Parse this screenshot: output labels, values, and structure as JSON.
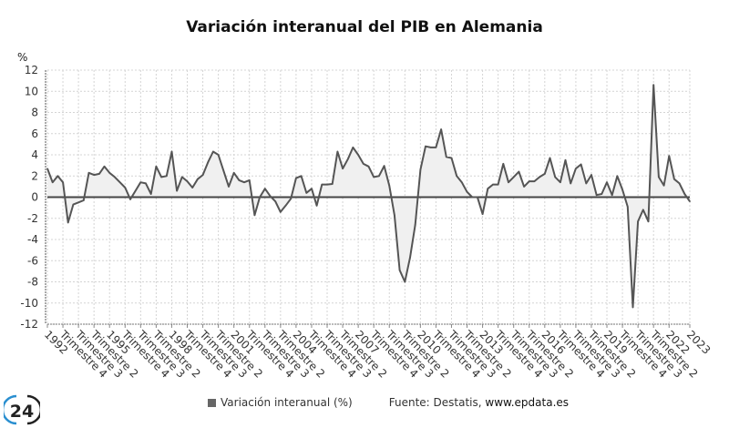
{
  "chart_data": {
    "type": "area",
    "title": "Variación interanual del PIB en Alemania",
    "ylabel": "%",
    "xlabel": "",
    "ylim": [
      -12,
      12
    ],
    "yticks": [
      12,
      10,
      8,
      6,
      4,
      2,
      0,
      -2,
      -4,
      -6,
      -8,
      -10,
      -12
    ],
    "grid": true,
    "legend_position": "bottom",
    "series": [
      {
        "name": "Variación interanual (%)",
        "color": "#555555",
        "values": [
          2.7,
          1.4,
          2.0,
          1.4,
          -2.4,
          -0.7,
          -0.5,
          -0.3,
          2.3,
          2.1,
          2.2,
          2.9,
          2.3,
          1.9,
          1.4,
          0.9,
          -0.2,
          0.6,
          1.4,
          1.3,
          0.3,
          2.9,
          1.9,
          2.0,
          4.3,
          0.6,
          1.9,
          1.5,
          0.9,
          1.7,
          2.1,
          3.3,
          4.3,
          4.0,
          2.5,
          1.0,
          2.3,
          1.6,
          1.4,
          1.6,
          -1.7,
          0.0,
          0.8,
          0.1,
          -0.4,
          -1.4,
          -0.8,
          -0.15,
          1.8,
          2.0,
          0.4,
          0.8,
          -0.8,
          1.2,
          1.2,
          1.25,
          4.3,
          2.7,
          3.6,
          4.7,
          4.0,
          3.15,
          2.9,
          1.9,
          2.0,
          2.95,
          1.1,
          -1.7,
          -6.9,
          -8.0,
          -5.7,
          -2.6,
          2.6,
          4.8,
          4.7,
          4.7,
          6.4,
          3.8,
          3.7,
          2.0,
          1.4,
          0.5,
          0.0,
          0.0,
          -1.6,
          0.8,
          1.2,
          1.2,
          3.15,
          1.4,
          1.9,
          2.4,
          1.0,
          1.5,
          1.5,
          1.9,
          2.2,
          3.7,
          1.9,
          1.4,
          3.5,
          1.3,
          2.7,
          3.1,
          1.3,
          2.1,
          0.2,
          0.3,
          1.4,
          0.2,
          2.0,
          0.7,
          -0.9,
          -10.4,
          -2.3,
          -1.2,
          -2.3,
          10.6,
          1.9,
          1.1,
          3.9,
          1.7,
          1.3,
          0.3,
          -0.4
        ]
      }
    ],
    "x_tick_labels": [
      "1992",
      "Trimestre 4",
      "Trimestre 3",
      "Trimestre 2",
      "1995",
      "Trimestre 4",
      "Trimestre 3",
      "Trimestre 2",
      "1998",
      "Trimestre 4",
      "Trimestre 3",
      "Trimestre 2",
      "2001",
      "Trimestre 4",
      "Trimestre 3",
      "Trimestre 2",
      "2004",
      "Trimestre 4",
      "Trimestre 3",
      "Trimestre 2",
      "2007",
      "Trimestre 4",
      "Trimestre 3",
      "Trimestre 2",
      "2010",
      "Trimestre 4",
      "Trimestre 3",
      "Trimestre 2",
      "2013",
      "Trimestre 4",
      "Trimestre 3",
      "Trimestre 2",
      "2016",
      "Trimestre 4",
      "Trimestre 3",
      "Trimestre 2",
      "2019",
      "Trimestre 4",
      "Trimestre 3",
      "Trimestre 2",
      "2022",
      "2023"
    ],
    "x_tick_label_every_quarters": 3
  },
  "legend": {
    "label": "Variación interanual (%)"
  },
  "source": {
    "prefix": "Fuente: Destatis, ",
    "site": "www.epdata.es"
  },
  "logo": {
    "text": "24"
  }
}
